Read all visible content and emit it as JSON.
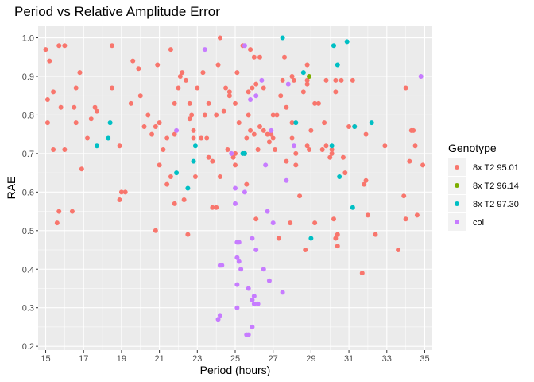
{
  "chart_data": {
    "type": "scatter",
    "title": "Period vs Relative Amplitude Error",
    "xlabel": "Period (hours)",
    "ylabel": "RAE",
    "xlim": [
      14.6,
      35.4
    ],
    "ylim": [
      0.19,
      1.03
    ],
    "xticks": [
      "15",
      "17",
      "19",
      "21",
      "23",
      "25",
      "27",
      "29",
      "31",
      "33",
      "35"
    ],
    "yticks": [
      "0.2",
      "0.3",
      "0.4",
      "0.5",
      "0.6",
      "0.7",
      "0.8",
      "0.9",
      "1.0"
    ],
    "grid": true,
    "legend": {
      "title": "Genotype",
      "position": "right"
    },
    "series": [
      {
        "name": "8x T2 95.01",
        "color": "#F8766D",
        "points": [
          [
            15.0,
            0.97
          ],
          [
            15.1,
            0.84
          ],
          [
            15.1,
            0.78
          ],
          [
            15.2,
            0.94
          ],
          [
            15.4,
            0.86
          ],
          [
            15.4,
            0.71
          ],
          [
            15.6,
            0.52
          ],
          [
            15.7,
            0.55
          ],
          [
            15.7,
            0.98
          ],
          [
            15.8,
            0.82
          ],
          [
            16.0,
            0.98
          ],
          [
            16.0,
            0.71
          ],
          [
            16.4,
            0.55
          ],
          [
            16.5,
            0.82
          ],
          [
            16.6,
            0.78
          ],
          [
            16.6,
            0.87
          ],
          [
            16.8,
            0.91
          ],
          [
            16.9,
            0.66
          ],
          [
            17.2,
            0.74
          ],
          [
            17.4,
            0.79
          ],
          [
            17.6,
            0.82
          ],
          [
            17.7,
            0.81
          ],
          [
            18.5,
            0.98
          ],
          [
            18.5,
            0.87
          ],
          [
            18.9,
            0.58
          ],
          [
            18.9,
            0.72
          ],
          [
            19.0,
            0.6
          ],
          [
            19.2,
            0.6
          ],
          [
            19.5,
            0.83
          ],
          [
            19.6,
            0.94
          ],
          [
            19.9,
            0.92
          ],
          [
            20.0,
            0.85
          ],
          [
            20.2,
            0.77
          ],
          [
            20.4,
            0.8
          ],
          [
            20.6,
            0.75
          ],
          [
            20.8,
            0.5
          ],
          [
            20.8,
            0.77
          ],
          [
            20.9,
            0.93
          ],
          [
            21.0,
            0.78
          ],
          [
            21.0,
            0.67
          ],
          [
            21.2,
            0.71
          ],
          [
            21.4,
            0.62
          ],
          [
            21.4,
            0.74
          ],
          [
            21.6,
            0.64
          ],
          [
            21.6,
            0.97
          ],
          [
            21.8,
            0.57
          ],
          [
            21.8,
            0.83
          ],
          [
            21.8,
            0.75
          ],
          [
            22.0,
            0.87
          ],
          [
            22.1,
            0.9
          ],
          [
            22.2,
            0.91
          ],
          [
            22.3,
            0.58
          ],
          [
            22.4,
            0.89
          ],
          [
            22.5,
            0.49
          ],
          [
            22.6,
            0.83
          ],
          [
            22.6,
            0.79
          ],
          [
            22.7,
            0.8
          ],
          [
            22.8,
            0.76
          ],
          [
            22.8,
            0.74
          ],
          [
            22.9,
            0.64
          ],
          [
            23.0,
            0.87
          ],
          [
            23.2,
            0.74
          ],
          [
            23.3,
            0.91
          ],
          [
            23.4,
            0.8
          ],
          [
            23.5,
            0.74
          ],
          [
            23.6,
            0.83
          ],
          [
            23.6,
            0.69
          ],
          [
            23.8,
            0.68
          ],
          [
            23.8,
            0.56
          ],
          [
            24.0,
            0.56
          ],
          [
            24.0,
            0.8
          ],
          [
            24.1,
            0.93
          ],
          [
            24.2,
            1.0
          ],
          [
            24.2,
            0.64
          ],
          [
            24.4,
            0.81
          ],
          [
            24.5,
            0.87
          ],
          [
            24.6,
            0.71
          ],
          [
            24.7,
            0.85
          ],
          [
            24.7,
            0.86
          ],
          [
            24.9,
            0.69
          ],
          [
            25.0,
            0.83
          ],
          [
            25.0,
            0.7
          ],
          [
            25.0,
            0.67
          ],
          [
            25.1,
            0.91
          ],
          [
            25.2,
            0.78
          ],
          [
            25.4,
            0.98
          ],
          [
            25.5,
            0.7
          ],
          [
            25.6,
            0.62
          ],
          [
            25.6,
            0.74
          ],
          [
            25.7,
            0.8
          ],
          [
            25.7,
            0.86
          ],
          [
            25.8,
            0.76
          ],
          [
            25.8,
            0.97
          ],
          [
            25.9,
            0.87
          ],
          [
            26.0,
            0.95
          ],
          [
            26.0,
            0.75
          ],
          [
            26.1,
            0.88
          ],
          [
            26.1,
            0.53
          ],
          [
            26.2,
            0.71
          ],
          [
            26.3,
            0.95
          ],
          [
            26.3,
            0.77
          ],
          [
            26.5,
            0.76
          ],
          [
            26.5,
            0.87
          ],
          [
            26.7,
            0.75
          ],
          [
            26.8,
            0.73
          ],
          [
            26.9,
            0.75
          ],
          [
            27.0,
            0.8
          ],
          [
            27.0,
            0.74
          ],
          [
            27.1,
            0.71
          ],
          [
            27.2,
            0.8
          ],
          [
            27.3,
            0.48
          ],
          [
            27.4,
            0.85
          ],
          [
            27.5,
            0.89
          ],
          [
            27.6,
            0.95
          ],
          [
            27.7,
            0.82
          ],
          [
            27.7,
            0.68
          ],
          [
            27.9,
            0.52
          ],
          [
            28.0,
            0.74
          ],
          [
            28.0,
            0.78
          ],
          [
            28.0,
            0.9
          ],
          [
            28.1,
            0.89
          ],
          [
            28.2,
            0.67
          ],
          [
            28.2,
            0.7
          ],
          [
            28.4,
            0.59
          ],
          [
            28.6,
            0.86
          ],
          [
            28.7,
            0.45
          ],
          [
            28.8,
            0.93
          ],
          [
            28.8,
            0.89
          ],
          [
            28.8,
            0.88
          ],
          [
            28.8,
            0.72
          ],
          [
            28.9,
            0.71
          ],
          [
            29.0,
            0.76
          ],
          [
            29.2,
            0.52
          ],
          [
            29.2,
            0.83
          ],
          [
            29.4,
            0.83
          ],
          [
            29.6,
            0.71
          ],
          [
            29.7,
            0.78
          ],
          [
            29.8,
            0.72
          ],
          [
            29.8,
            0.89
          ],
          [
            30.0,
            0.69
          ],
          [
            30.1,
            0.71
          ],
          [
            30.1,
            0.7
          ],
          [
            30.2,
            0.53
          ],
          [
            30.3,
            0.86
          ],
          [
            30.3,
            0.48
          ],
          [
            30.3,
            0.89
          ],
          [
            30.4,
            0.46
          ],
          [
            30.4,
            0.49
          ],
          [
            30.6,
            0.89
          ],
          [
            30.7,
            0.69
          ],
          [
            30.8,
            0.65
          ],
          [
            31.0,
            0.77
          ],
          [
            31.2,
            0.89
          ],
          [
            31.3,
            0.77
          ],
          [
            31.7,
            0.39
          ],
          [
            31.8,
            0.62
          ],
          [
            31.9,
            0.75
          ],
          [
            31.9,
            0.63
          ],
          [
            32.0,
            0.54
          ],
          [
            32.4,
            0.49
          ],
          [
            32.9,
            0.72
          ],
          [
            33.6,
            0.45
          ],
          [
            33.9,
            0.59
          ],
          [
            34.0,
            0.87
          ],
          [
            34.0,
            0.53
          ],
          [
            34.2,
            0.68
          ],
          [
            34.3,
            0.76
          ],
          [
            34.4,
            0.76
          ],
          [
            34.5,
            0.72
          ],
          [
            34.6,
            0.54
          ],
          [
            34.9,
            0.67
          ]
        ]
      },
      {
        "name": "8x T2 96.14",
        "color": "#7CAE00",
        "points": [
          [
            28.9,
            0.9
          ]
        ]
      },
      {
        "name": "8x T2 97.30",
        "color": "#00BFC4",
        "points": [
          [
            17.7,
            0.72
          ],
          [
            18.3,
            0.74
          ],
          [
            18.4,
            0.78
          ],
          [
            21.9,
            0.65
          ],
          [
            22.5,
            0.61
          ],
          [
            22.8,
            0.68
          ],
          [
            22.9,
            0.72
          ],
          [
            25.4,
            0.7
          ],
          [
            25.5,
            0.7
          ],
          [
            27.5,
            1.0
          ],
          [
            28.2,
            0.78
          ],
          [
            28.6,
            0.91
          ],
          [
            29.0,
            0.48
          ],
          [
            30.1,
            0.72
          ],
          [
            30.2,
            0.98
          ],
          [
            30.4,
            0.93
          ],
          [
            30.5,
            0.64
          ],
          [
            30.9,
            0.99
          ],
          [
            31.2,
            0.56
          ],
          [
            31.3,
            0.77
          ],
          [
            32.2,
            0.78
          ]
        ]
      },
      {
        "name": "col",
        "color": "#C77CFF",
        "points": [
          [
            21.9,
            0.76
          ],
          [
            23.4,
            0.97
          ],
          [
            24.1,
            0.27
          ],
          [
            24.2,
            0.28
          ],
          [
            24.2,
            0.41
          ],
          [
            24.3,
            0.41
          ],
          [
            24.8,
            0.7
          ],
          [
            25.0,
            0.61
          ],
          [
            25.0,
            0.57
          ],
          [
            25.1,
            0.47
          ],
          [
            25.1,
            0.43
          ],
          [
            25.1,
            0.36
          ],
          [
            25.1,
            0.3
          ],
          [
            25.2,
            0.47
          ],
          [
            25.2,
            0.42
          ],
          [
            25.3,
            0.4
          ],
          [
            25.5,
            0.98
          ],
          [
            25.5,
            0.6
          ],
          [
            25.6,
            0.23
          ],
          [
            25.7,
            0.35
          ],
          [
            25.7,
            0.23
          ],
          [
            25.8,
            0.84
          ],
          [
            25.9,
            0.25
          ],
          [
            25.9,
            0.32
          ],
          [
            25.9,
            0.48
          ],
          [
            26.0,
            0.33
          ],
          [
            26.0,
            0.31
          ],
          [
            26.1,
            0.85
          ],
          [
            26.1,
            0.45
          ],
          [
            26.2,
            0.31
          ],
          [
            26.4,
            0.89
          ],
          [
            26.5,
            0.4
          ],
          [
            26.6,
            0.67
          ],
          [
            26.7,
            0.55
          ],
          [
            26.8,
            0.37
          ],
          [
            26.9,
            0.76
          ],
          [
            27.0,
            0.52
          ],
          [
            27.5,
            0.34
          ],
          [
            27.7,
            0.63
          ],
          [
            27.8,
            0.88
          ],
          [
            28.1,
            0.72
          ],
          [
            34.8,
            0.9
          ]
        ]
      }
    ]
  }
}
